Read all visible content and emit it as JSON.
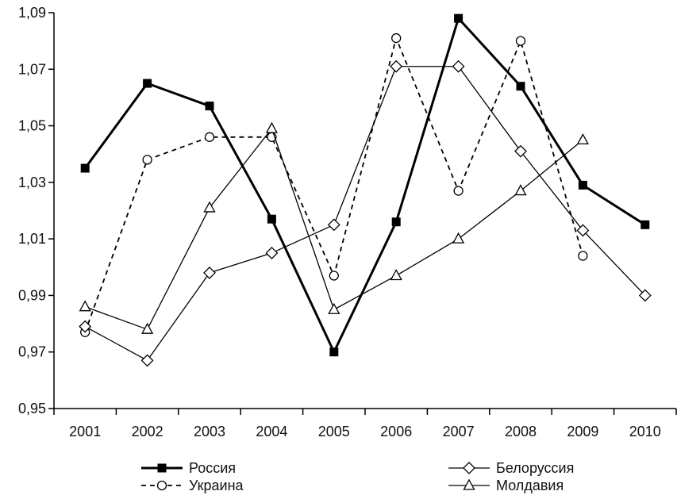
{
  "chart_data": {
    "type": "line",
    "title": "",
    "xlabel": "",
    "ylabel": "",
    "categories": [
      "2001",
      "2002",
      "2003",
      "2004",
      "2005",
      "2006",
      "2007",
      "2008",
      "2009",
      "2010"
    ],
    "ylim": [
      0.95,
      1.09
    ],
    "yticks": [
      0.95,
      0.97,
      0.99,
      1.01,
      1.03,
      1.05,
      1.07,
      1.09
    ],
    "ytick_labels": [
      "0,95",
      "0,97",
      "0,99",
      "1,01",
      "1,03",
      "1,05",
      "1,07",
      "1,09"
    ],
    "grid": false,
    "legend_position": "bottom",
    "series": [
      {
        "name": "Россия",
        "style": "solid-bold",
        "marker": "filled-square",
        "color": "#000000",
        "values": [
          1.035,
          1.065,
          1.057,
          1.017,
          0.97,
          1.016,
          1.088,
          1.064,
          1.029,
          1.015
        ]
      },
      {
        "name": "Украина",
        "style": "dashed",
        "marker": "open-circle",
        "color": "#000000",
        "values": [
          0.977,
          1.038,
          1.046,
          1.046,
          0.997,
          1.081,
          1.027,
          1.08,
          1.004,
          null
        ]
      },
      {
        "name": "Белоруссия",
        "style": "solid-thin",
        "marker": "open-diamond",
        "color": "#000000",
        "values": [
          0.979,
          0.967,
          0.998,
          1.005,
          1.015,
          1.071,
          1.071,
          1.041,
          1.013,
          0.99
        ]
      },
      {
        "name": "Молдавия",
        "style": "solid-thin",
        "marker": "open-triangle",
        "color": "#000000",
        "values": [
          0.986,
          0.978,
          1.021,
          1.049,
          0.985,
          0.997,
          1.01,
          1.027,
          1.045,
          null
        ]
      }
    ]
  }
}
